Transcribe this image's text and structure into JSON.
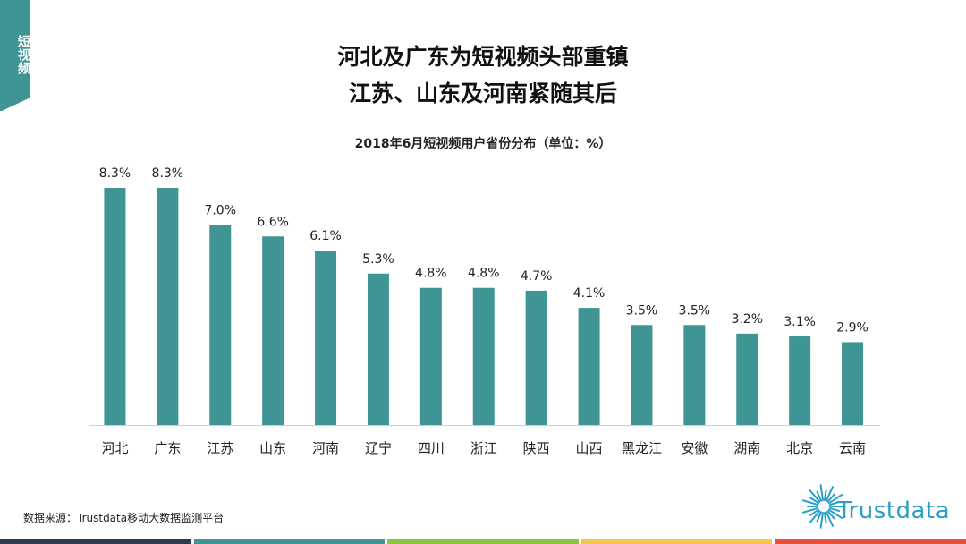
{
  "side_tab": {
    "label": "短视频",
    "color": "#3f9594"
  },
  "headline": {
    "line1": "河北及广东为短视频头部重镇",
    "line2": "江苏、山东及河南紧随其后"
  },
  "chart_data": {
    "type": "bar",
    "title": "2018年6月短视频用户省份分布（单位：%）",
    "categories": [
      "河北",
      "广东",
      "江苏",
      "山东",
      "河南",
      "辽宁",
      "四川",
      "浙江",
      "陕西",
      "山西",
      "黑龙江",
      "安徽",
      "湖南",
      "北京",
      "云南"
    ],
    "values": [
      8.3,
      8.3,
      7.0,
      6.6,
      6.1,
      5.3,
      4.8,
      4.8,
      4.7,
      4.1,
      3.5,
      3.5,
      3.2,
      3.1,
      2.9
    ],
    "value_labels": [
      "8.3%",
      "8.3%",
      "7.0%",
      "6.6%",
      "6.1%",
      "5.3%",
      "4.8%",
      "4.8%",
      "4.7%",
      "4.1%",
      "3.5%",
      "3.5%",
      "3.2%",
      "3.1%",
      "2.9%"
    ],
    "xlabel": "",
    "ylabel": "",
    "ylim": [
      0,
      8.3
    ],
    "grid": false,
    "bar_color": "#3f9594"
  },
  "footer": {
    "source": "数据来源：Trustdata移动大数据监测平台",
    "brand": "Trustdata",
    "brand_color": "#2a9fc5",
    "bar_colors": [
      "#2d3b4e",
      "#3f9594",
      "#8cc63f",
      "#f7c64b",
      "#e84e3c"
    ]
  }
}
